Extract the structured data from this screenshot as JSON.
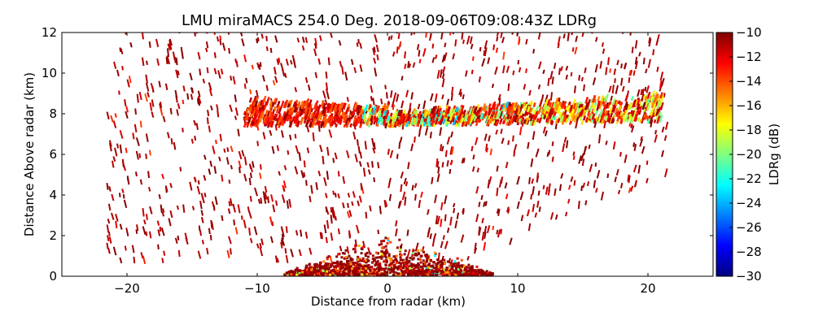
{
  "chart_data": {
    "type": "heatmap",
    "title": "LMU miraMACS 254.0 Deg. 2018-09-06T09:08:43Z  LDRg",
    "xlabel": "Distance from radar (km)",
    "ylabel": "Distance Above radar  (km)",
    "xlim": [
      -25,
      25
    ],
    "ylim": [
      0,
      12
    ],
    "xticks": [
      "−20",
      "−10",
      "0",
      "10",
      "20"
    ],
    "xtick_values": [
      -20,
      -10,
      0,
      10,
      20
    ],
    "yticks": [
      "0",
      "2",
      "4",
      "6",
      "8",
      "10",
      "12"
    ],
    "ytick_values": [
      0,
      2,
      4,
      6,
      8,
      10,
      12
    ],
    "colorbar": {
      "label": "LDRg (dB)",
      "range": [
        -30,
        -10
      ],
      "ticks": [
        "−10",
        "−12",
        "−14",
        "−16",
        "−18",
        "−20",
        "−22",
        "−24",
        "−26",
        "−28",
        "−30"
      ],
      "tick_values": [
        -10,
        -12,
        -14,
        -16,
        -18,
        -20,
        -22,
        -24,
        -26,
        -28,
        -30
      ],
      "colormap": "jet",
      "colors": [
        "#00007f",
        "#0000ff",
        "#007fff",
        "#00ffff",
        "#7fff7f",
        "#ffff00",
        "#ff7f00",
        "#ff0000",
        "#7f0000"
      ]
    },
    "features": [
      {
        "name": "cloud layer",
        "x_range": [
          -11,
          21
        ],
        "height_km": [
          7.2,
          8.6
        ],
        "ldr_db": [
          -24,
          -10
        ]
      },
      {
        "name": "near-radar clutter",
        "x_range": [
          -8,
          8
        ],
        "height_km": [
          0,
          2
        ],
        "ldr_db": [
          -12,
          -10
        ]
      },
      {
        "name": "sparse echoes",
        "x_range": [
          -22,
          22
        ],
        "height_km": [
          0,
          12
        ],
        "ldr_db": [
          -12,
          -10
        ]
      }
    ]
  }
}
